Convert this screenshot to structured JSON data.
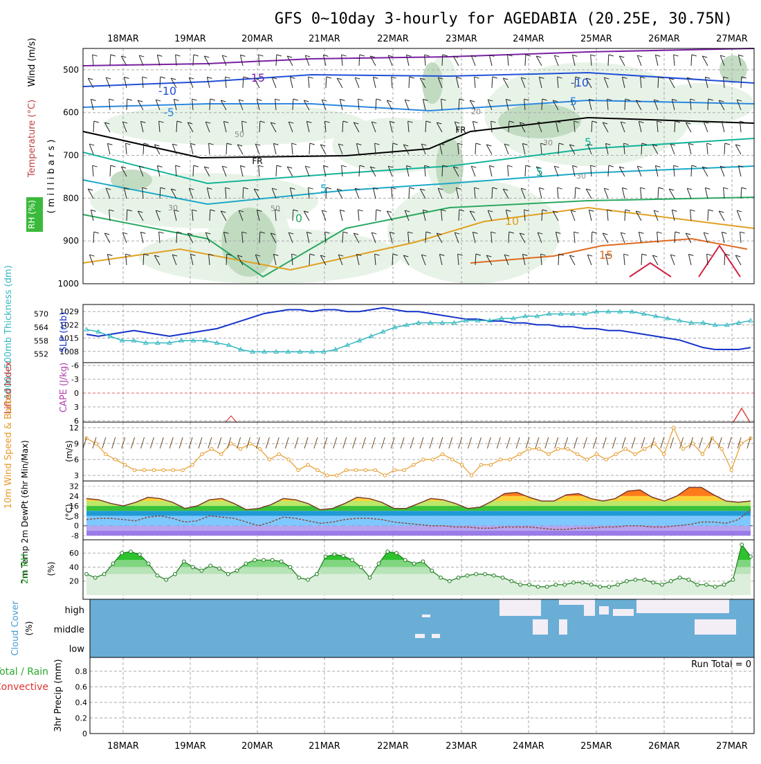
{
  "title": "GFS 0~10day 3-hourly for AGEDABIA (20.25E, 30.75N)",
  "dates": [
    "18MAR",
    "19MAR",
    "20MAR",
    "21MAR",
    "22MAR",
    "23MAR",
    "24MAR",
    "25MAR",
    "26MAR",
    "27MAR"
  ],
  "colors": {
    "frame": "#000000",
    "grid": "#aaaaaa",
    "rh_fill_light": "#e6f2e6",
    "rh_fill_mid": "#bcd8bc",
    "rh_fill_dark": "#8fb48f",
    "cloud_bg": "#6aaed6",
    "cloud_fill": "#f3eef6",
    "slp": "#1432c8",
    "thickness": "#33b8c0",
    "wind_speed": "#e69a2a",
    "rh2m": "#2aa82a",
    "lifted": "#e04040"
  },
  "panels": {
    "upper": {
      "ylabels": [
        "Wind (m/s)",
        "Temperature (°C)",
        "RH (%)"
      ],
      "ylabel_mb": "( m i l l i b a r s )",
      "ticks": [
        "500",
        "600",
        "700",
        "800",
        "900",
        "1000"
      ],
      "contour_labels": [
        "-15",
        "-10",
        "-10",
        "-5",
        "-5",
        "5",
        "5",
        "FR",
        "FR",
        "5",
        "0",
        "10",
        "15",
        "20",
        "30",
        "30",
        "30",
        "50",
        "50"
      ]
    },
    "slp": {
      "ylabel_left": "1000~500mb Thickness (dm)",
      "ylabel_right": "SLP (mb)",
      "ticks_left": [
        "570",
        "564",
        "558",
        "552"
      ],
      "ticks_right": [
        "1029",
        "1022",
        "1015",
        "1008"
      ]
    },
    "cape": {
      "ylabel_left": "Lifted Index",
      "ylabel_right": "CAPE (J/kg)",
      "ticks": [
        "-6",
        "-3",
        "0",
        "3",
        "6"
      ]
    },
    "wind10": {
      "ylabel": "10m Wind Speed & Barbs",
      "unit": "(m/s)",
      "ticks": [
        "12",
        "9",
        "6",
        "3"
      ]
    },
    "temp2m": {
      "ylabel": "2m Temp 2m DewPt (6hr Min/Max)",
      "unit": "(°C)",
      "ticks": [
        "32",
        "24",
        "16",
        "8",
        "0",
        "-8"
      ]
    },
    "rh2m": {
      "ylabel": "2m RH",
      "unit": "(%)",
      "ticks": [
        "60",
        "40",
        "20"
      ]
    },
    "cloud": {
      "ylabel": "Cloud Cover",
      "unit": "(%)",
      "levels": [
        "high",
        "middle",
        "low"
      ]
    },
    "precip": {
      "ylabel_a": "Total / Rain",
      "ylabel_b": "Convective",
      "ylabel_c": "3hr Precip (mm)",
      "ticks": [
        "0.8",
        "0.6",
        "0.4",
        "0.2",
        "0"
      ],
      "run_total": "Run Total = 0"
    }
  },
  "chart_data": [
    {
      "type": "line",
      "panel": "slp",
      "series": [
        {
          "name": "SLP (mb)",
          "values": [
            1017,
            1016,
            1017,
            1018,
            1019,
            1018,
            1017,
            1016,
            1017,
            1018,
            1019,
            1020,
            1022,
            1024,
            1026,
            1028,
            1029,
            1030,
            1030,
            1029,
            1030,
            1030,
            1029,
            1029,
            1030,
            1031,
            1030,
            1029,
            1029,
            1028,
            1027,
            1026,
            1025,
            1025,
            1024,
            1024,
            1023,
            1023,
            1022,
            1022,
            1021,
            1021,
            1020,
            1020,
            1019,
            1019,
            1018,
            1017,
            1016,
            1015,
            1014,
            1012,
            1010,
            1009,
            1009,
            1009,
            1010
          ]
        },
        {
          "name": "1000~500mb Thickness (dm)",
          "values": [
            563,
            562,
            560,
            558,
            558,
            557,
            557,
            557,
            558,
            558,
            558,
            557,
            556,
            554,
            553,
            553,
            553,
            553,
            553,
            553,
            553,
            554,
            556,
            558,
            560,
            562,
            564,
            565,
            566,
            566,
            566,
            566,
            567,
            567,
            567,
            568,
            568,
            569,
            569,
            570,
            570,
            570,
            570,
            571,
            571,
            571,
            571,
            570,
            569,
            568,
            567,
            566,
            566,
            565,
            565,
            566,
            567
          ]
        }
      ]
    },
    {
      "type": "line",
      "panel": "wind10",
      "series": [
        {
          "name": "10m Wind Speed",
          "values": [
            10,
            9,
            7,
            6,
            5,
            4,
            4,
            4,
            4,
            4,
            4,
            5,
            7,
            8,
            7,
            9,
            8,
            9,
            8,
            6,
            7,
            6,
            4,
            5,
            4,
            3,
            3,
            4,
            4,
            4,
            4,
            3,
            4,
            4,
            5,
            6,
            6,
            7,
            6,
            5,
            3,
            5,
            5,
            6,
            6,
            7,
            8,
            8,
            7,
            8,
            8,
            7,
            6,
            7,
            6,
            7,
            8,
            7,
            8,
            9,
            7,
            12,
            8,
            9,
            7,
            10,
            8,
            4,
            9,
            10
          ]
        }
      ]
    },
    {
      "type": "area",
      "panel": "temp2m",
      "series": [
        {
          "name": "2m Temp",
          "values": [
            22,
            21,
            18,
            16,
            19,
            23,
            22,
            19,
            14,
            16,
            21,
            22,
            18,
            13,
            14,
            17,
            22,
            21,
            18,
            13,
            14,
            18,
            23,
            22,
            19,
            14,
            14,
            18,
            22,
            21,
            18,
            14,
            15,
            20,
            26,
            27,
            23,
            20,
            20,
            25,
            26,
            22,
            20,
            22,
            28,
            29,
            23,
            20,
            24,
            31,
            31,
            25,
            20,
            19,
            20
          ]
        },
        {
          "name": "2m DewPt",
          "values": [
            5,
            6,
            6,
            5,
            4,
            7,
            8,
            6,
            3,
            4,
            8,
            7,
            6,
            3,
            0,
            3,
            7,
            6,
            4,
            2,
            3,
            5,
            6,
            6,
            5,
            3,
            2,
            1,
            0,
            0,
            -1,
            -1,
            -2,
            -2,
            -1,
            -1,
            -1,
            -2,
            -3,
            -3,
            -2,
            -2,
            -1,
            -1,
            0,
            0,
            -1,
            -1,
            0,
            1,
            3,
            3,
            2,
            5,
            13
          ]
        }
      ]
    },
    {
      "type": "area",
      "panel": "rh2m",
      "series": [
        {
          "name": "2m RH",
          "values": [
            30,
            25,
            30,
            45,
            60,
            62,
            58,
            45,
            28,
            22,
            30,
            48,
            40,
            35,
            42,
            38,
            30,
            35,
            45,
            50,
            50,
            50,
            48,
            40,
            25,
            22,
            30,
            55,
            58,
            56,
            50,
            40,
            25,
            45,
            62,
            60,
            50,
            45,
            48,
            35,
            25,
            20,
            25,
            28,
            30,
            30,
            28,
            25,
            20,
            15,
            15,
            12,
            12,
            15,
            15,
            18,
            18,
            15,
            12,
            12,
            15,
            20,
            22,
            22,
            18,
            15,
            20,
            25,
            22,
            15,
            15,
            12,
            15,
            22,
            72,
            55
          ]
        }
      ]
    }
  ]
}
